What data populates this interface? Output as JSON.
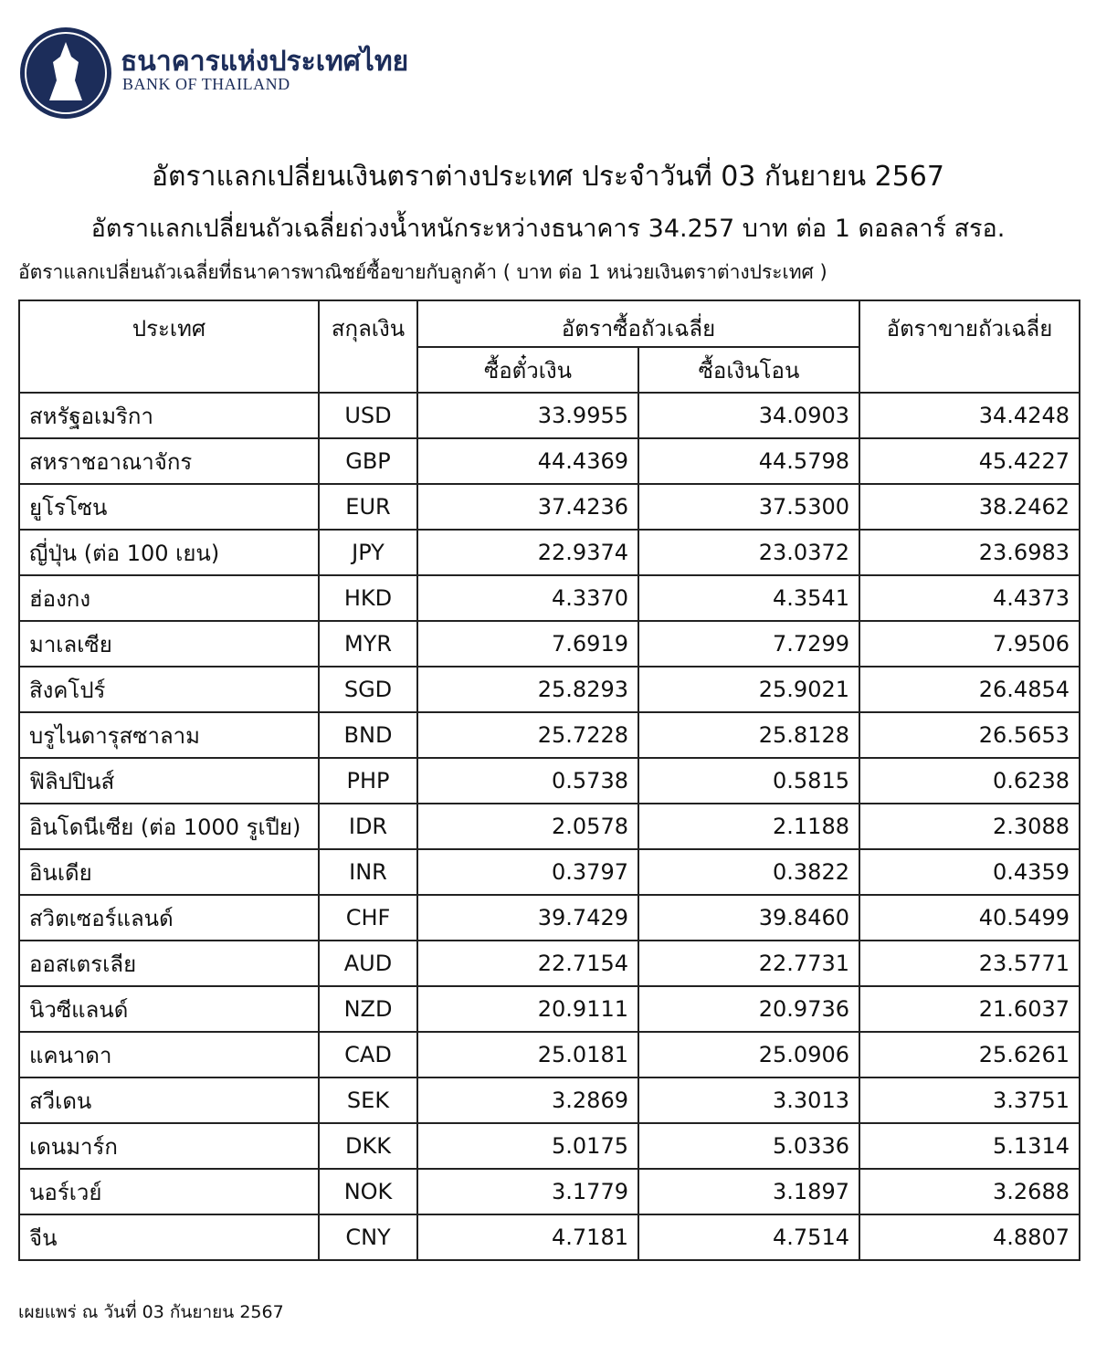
{
  "header": {
    "org_name_th": "ธนาคารแห่งประเทศไทย",
    "org_name_en": "BANK OF THAILAND"
  },
  "title": "อัตราแลกเปลี่ยนเงินตราต่างประเทศ ประจำวันที่ 03 กันยายน 2567",
  "subtitle": "อัตราแลกเปลี่ยนถัวเฉลี่ยถ่วงน้ำหนักระหว่างธนาคาร 34.257 บาท ต่อ 1 ดอลลาร์ สรอ.",
  "note": "อัตราแลกเปลี่ยนถัวเฉลี่ยที่ธนาคารพาณิชย์ซื้อขายกับลูกค้า ( บาท ต่อ 1 หน่วยเงินตราต่างประเทศ )",
  "table": {
    "headers": {
      "country": "ประเทศ",
      "currency": "สกุลเงิน",
      "buy": "อัตราซื้อถัวเฉลี่ย",
      "buy_cash": "ซื้อตั๋วเงิน",
      "buy_transfer": "ซื้อเงินโอน",
      "sell": "อัตราขายถัวเฉลี่ย"
    },
    "rows": [
      [
        "สหรัฐอเมริกา",
        "USD",
        "33.9955",
        "34.0903",
        "34.4248"
      ],
      [
        "สหราชอาณาจักร",
        "GBP",
        "44.4369",
        "44.5798",
        "45.4227"
      ],
      [
        "ยูโรโซน",
        "EUR",
        "37.4236",
        "37.5300",
        "38.2462"
      ],
      [
        "ญี่ปุ่น (ต่อ 100 เยน)",
        "JPY",
        "22.9374",
        "23.0372",
        "23.6983"
      ],
      [
        "ฮ่องกง",
        "HKD",
        "4.3370",
        "4.3541",
        "4.4373"
      ],
      [
        "มาเลเซีย",
        "MYR",
        "7.6919",
        "7.7299",
        "7.9506"
      ],
      [
        "สิงคโปร์",
        "SGD",
        "25.8293",
        "25.9021",
        "26.4854"
      ],
      [
        "บรูไนดารุสซาลาม",
        "BND",
        "25.7228",
        "25.8128",
        "26.5653"
      ],
      [
        "ฟิลิปปินส์",
        "PHP",
        "0.5738",
        "0.5815",
        "0.6238"
      ],
      [
        "อินโดนีเซีย (ต่อ 1000 รูเปีย)",
        "IDR",
        "2.0578",
        "2.1188",
        "2.3088"
      ],
      [
        "อินเดีย",
        "INR",
        "0.3797",
        "0.3822",
        "0.4359"
      ],
      [
        "สวิตเซอร์แลนด์",
        "CHF",
        "39.7429",
        "39.8460",
        "40.5499"
      ],
      [
        "ออสเตรเลีย",
        "AUD",
        "22.7154",
        "22.7731",
        "23.5771"
      ],
      [
        "นิวซีแลนด์",
        "NZD",
        "20.9111",
        "20.9736",
        "21.6037"
      ],
      [
        "แคนาดา",
        "CAD",
        "25.0181",
        "25.0906",
        "25.6261"
      ],
      [
        "สวีเดน",
        "SEK",
        "3.2869",
        "3.3013",
        "3.3751"
      ],
      [
        "เดนมาร์ก",
        "DKK",
        "5.0175",
        "5.0336",
        "5.1314"
      ],
      [
        "นอร์เวย์",
        "NOK",
        "3.1779",
        "3.1897",
        "3.2688"
      ],
      [
        "จีน",
        "CNY",
        "4.7181",
        "4.7514",
        "4.8807"
      ]
    ]
  },
  "footer": "เผยแพร่ ณ วันที่ 03 กันยายน 2567"
}
